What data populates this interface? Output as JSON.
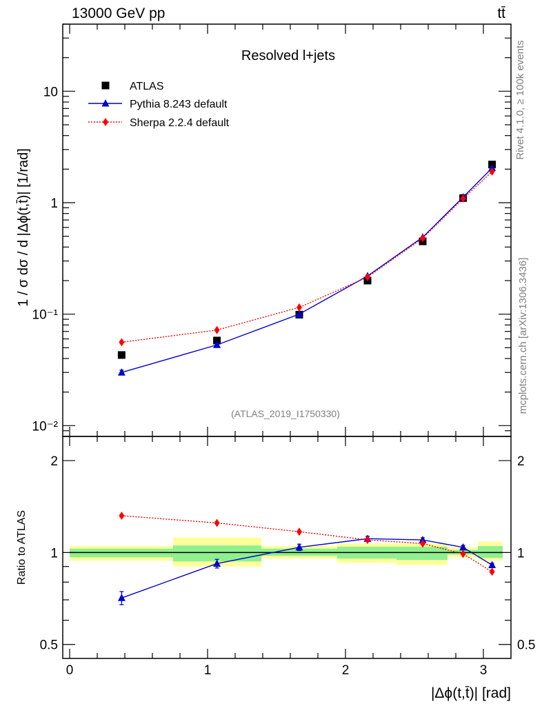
{
  "header": {
    "energy_label": "13000 GeV pp",
    "process_label": "tt̄"
  },
  "side": {
    "rivet_label": "Rivet 4.1.0, ≥ 100k events",
    "source_label": "mcplots.cern.ch [arXiv:1306.3436]"
  },
  "chart_data": [
    {
      "type": "scatter",
      "panel": "main",
      "title": "Resolved l+jets",
      "watermark": "(ATLAS_2019_I1750330)",
      "ylabel": "1 / σ dσ / d |Δϕ(t,t̄)| [1/rad]",
      "yscale": "log",
      "ylim": [
        0.008,
        40
      ],
      "xlim": [
        -0.05,
        3.2
      ],
      "yticks": [
        {
          "value": 10,
          "label": "10"
        },
        {
          "value": 1,
          "label": "1"
        },
        {
          "value": 0.1,
          "label": "10⁻¹"
        },
        {
          "value": 0.01,
          "label": "10⁻²"
        }
      ],
      "x": [
        0.377,
        1.068,
        1.665,
        2.16,
        2.56,
        2.853,
        3.063
      ],
      "series": [
        {
          "name": "ATLAS",
          "color": "#000000",
          "marker": "square",
          "line": "none",
          "values": [
            0.043,
            0.058,
            0.099,
            0.2,
            0.45,
            1.1,
            2.2
          ]
        },
        {
          "name": "Pythia 8.243 default",
          "color": "#0000cc",
          "marker": "triangle",
          "line": "solid",
          "values": [
            0.03,
            0.053,
            0.1,
            0.22,
            0.49,
            1.12,
            2.05
          ],
          "errors": [
            0.0015,
            0.0015,
            0.002,
            0.003,
            0.006,
            0.012,
            0.02
          ]
        },
        {
          "name": "Sherpa 2.2.4 default",
          "color": "#ff0000",
          "marker": "diamond",
          "line": "dotted",
          "values": [
            0.056,
            0.072,
            0.115,
            0.215,
            0.48,
            1.09,
            1.9
          ]
        }
      ],
      "legend_position": "top-left"
    },
    {
      "type": "scatter",
      "panel": "ratio",
      "ylabel": "Ratio to ATLAS",
      "xlabel": "|Δϕ(t,t̄)| [rad]",
      "yscale": "log",
      "ylim": [
        0.45,
        2.4
      ],
      "xlim": [
        -0.05,
        3.2
      ],
      "xticks": [
        0,
        1,
        2,
        3
      ],
      "yticks": [
        {
          "value": 2,
          "label": "2"
        },
        {
          "value": 1,
          "label": "1"
        },
        {
          "value": 0.5,
          "label": "0.5"
        }
      ],
      "reference": 1,
      "bands": [
        {
          "xlo": 0.0,
          "xhi": 0.75,
          "yellow": [
            0.94,
            1.05
          ],
          "green": [
            0.965,
            1.03
          ]
        },
        {
          "xlo": 0.75,
          "xhi": 1.39,
          "yellow": [
            0.9,
            1.12
          ],
          "green": [
            0.935,
            1.055
          ]
        },
        {
          "xlo": 1.39,
          "xhi": 1.94,
          "yellow": [
            0.955,
            1.05
          ],
          "green": [
            0.975,
            1.03
          ]
        },
        {
          "xlo": 1.94,
          "xhi": 2.37,
          "yellow": [
            0.925,
            1.07
          ],
          "green": [
            0.955,
            1.045
          ]
        },
        {
          "xlo": 2.37,
          "xhi": 2.74,
          "yellow": [
            0.91,
            1.07
          ],
          "green": [
            0.945,
            1.045
          ]
        },
        {
          "xlo": 2.74,
          "xhi": 2.96,
          "yellow": [
            0.965,
            1.04
          ],
          "green": [
            0.985,
            1.02
          ]
        },
        {
          "xlo": 2.96,
          "xhi": 3.14,
          "yellow": [
            0.94,
            1.085
          ],
          "green": [
            0.96,
            1.05
          ]
        }
      ],
      "x": [
        0.377,
        1.068,
        1.665,
        2.16,
        2.56,
        2.853,
        3.063
      ],
      "series": [
        {
          "name": "Pythia 8.243 default",
          "color": "#0000cc",
          "marker": "triangle",
          "line": "solid",
          "values": [
            0.71,
            0.92,
            1.04,
            1.11,
            1.1,
            1.04,
            0.91
          ],
          "errors": [
            0.035,
            0.03,
            0.025,
            0.02,
            0.018,
            0.015,
            0.012
          ]
        },
        {
          "name": "Sherpa 2.2.4 default",
          "color": "#ff0000",
          "marker": "diamond",
          "line": "dotted",
          "values": [
            1.32,
            1.25,
            1.17,
            1.1,
            1.07,
            0.99,
            0.865
          ]
        }
      ]
    }
  ]
}
